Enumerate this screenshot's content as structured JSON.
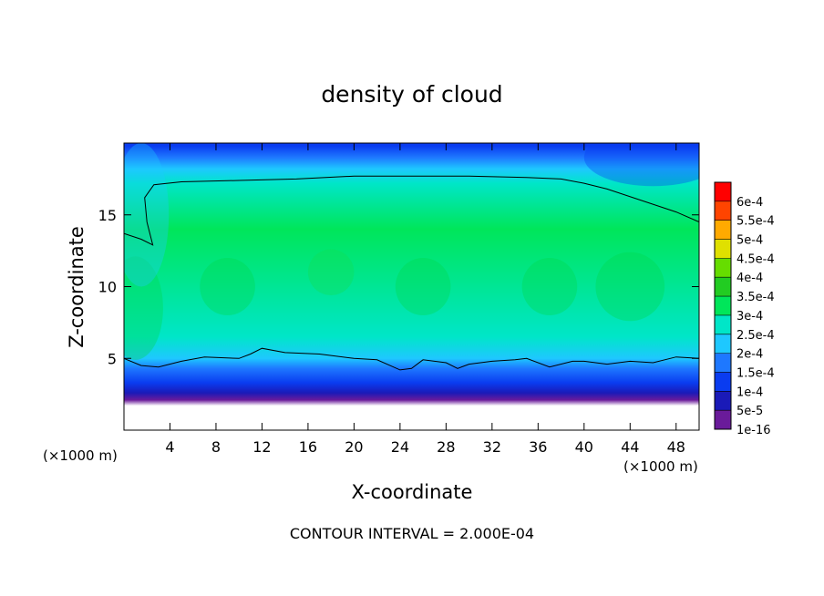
{
  "chart_data": {
    "type": "heatmap",
    "title": "density of cloud",
    "xlabel": "X-coordinate",
    "ylabel": "Z-coordinate",
    "x_unit_left": "(×1000 m)",
    "x_unit_right": "(×1000 m)",
    "xlim": [
      0,
      50
    ],
    "ylim": [
      0,
      20
    ],
    "x_ticks": [
      4,
      8,
      12,
      16,
      20,
      24,
      28,
      32,
      36,
      40,
      44,
      48
    ],
    "x_tick_labels": [
      "4",
      "8",
      "12",
      "16",
      "20",
      "24",
      "28",
      "32",
      "36",
      "40",
      "44",
      "48"
    ],
    "y_ticks": [
      5,
      10,
      15
    ],
    "y_tick_labels": [
      "5",
      "10",
      "15"
    ],
    "footer": "CONTOUR INTERVAL = 2.000E-04",
    "colorbar": {
      "levels": [
        "1e-16",
        "5e-5",
        "1e-4",
        "1.5e-4",
        "2e-4",
        "2.5e-4",
        "3e-4",
        "3.5e-4",
        "4e-4",
        "4.5e-4",
        "5e-4",
        "5.5e-4",
        "6e-4"
      ],
      "colors": [
        "#6a1b9a",
        "#1a1ab8",
        "#0a3cf0",
        "#1e78ff",
        "#1ec8ff",
        "#00e6c8",
        "#00e65a",
        "#22cc22",
        "#66dd00",
        "#e0e000",
        "#ffaa00",
        "#ff4400",
        "#ff0000",
        "#ff7777"
      ]
    },
    "contour_lines": [
      {
        "level": "2.000E-04",
        "points": [
          [
            0.0,
            13.7
          ],
          [
            1.5,
            13.3
          ],
          [
            2.5,
            12.9
          ],
          [
            2.0,
            14.5
          ],
          [
            1.8,
            16.2
          ],
          [
            2.6,
            17.1
          ],
          [
            5,
            17.3
          ],
          [
            10,
            17.4
          ],
          [
            15,
            17.5
          ],
          [
            20,
            17.7
          ],
          [
            25,
            17.7
          ],
          [
            30,
            17.7
          ],
          [
            35,
            17.6
          ],
          [
            38,
            17.5
          ],
          [
            40,
            17.2
          ],
          [
            42,
            16.8
          ],
          [
            45,
            16.0
          ],
          [
            48,
            15.2
          ],
          [
            50,
            14.5
          ]
        ]
      },
      {
        "level": "2.000E-04",
        "points": [
          [
            0.0,
            5.0
          ],
          [
            1.5,
            4.5
          ],
          [
            3,
            4.4
          ],
          [
            5,
            4.8
          ],
          [
            7,
            5.1
          ],
          [
            10,
            5.0
          ],
          [
            11,
            5.3
          ],
          [
            12,
            5.7
          ],
          [
            14,
            5.4
          ],
          [
            17,
            5.3
          ],
          [
            20,
            5.0
          ],
          [
            22,
            4.9
          ],
          [
            24,
            4.2
          ],
          [
            25,
            4.3
          ],
          [
            26,
            4.9
          ],
          [
            28,
            4.7
          ],
          [
            29,
            4.3
          ],
          [
            30,
            4.6
          ],
          [
            32,
            4.8
          ],
          [
            34,
            4.9
          ],
          [
            35,
            5.0
          ],
          [
            37,
            4.4
          ],
          [
            39,
            4.8
          ],
          [
            40,
            4.8
          ],
          [
            42,
            4.6
          ],
          [
            44,
            4.8
          ],
          [
            46,
            4.7
          ],
          [
            48,
            5.1
          ],
          [
            50,
            5.0
          ]
        ]
      }
    ],
    "z_profile": [
      {
        "z": 19.8,
        "level": "1e-4"
      },
      {
        "z": 19.0,
        "level": "1.5e-4"
      },
      {
        "z": 18.2,
        "level": "2e-4"
      },
      {
        "z": 17.2,
        "level": "2.5e-4"
      },
      {
        "z": 14.0,
        "level": "3e-4"
      },
      {
        "z": 6.5,
        "level": "2.5e-4"
      },
      {
        "z": 5.0,
        "level": "2e-4"
      },
      {
        "z": 4.3,
        "level": "1.5e-4"
      },
      {
        "z": 3.3,
        "level": "1e-4"
      },
      {
        "z": 2.6,
        "level": "5e-5"
      },
      {
        "z": 2.1,
        "level": "1e-16"
      },
      {
        "z": 1.7,
        "level": "none"
      }
    ]
  }
}
